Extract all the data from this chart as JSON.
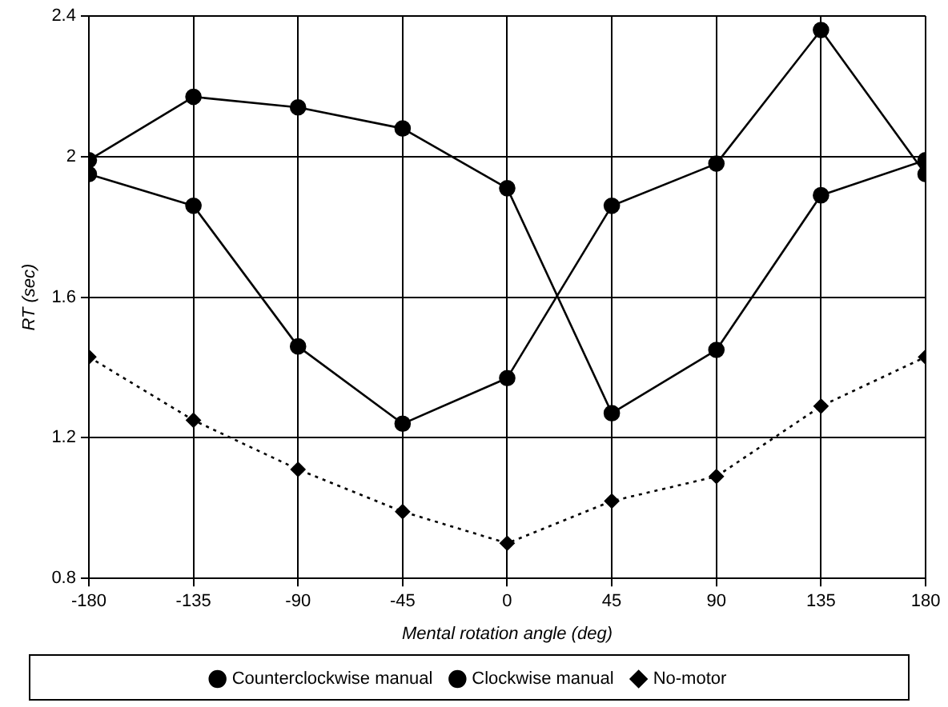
{
  "chart_data": {
    "type": "line",
    "xlabel": "Mental rotation angle (deg)",
    "ylabel": "RT (sec)",
    "x": [
      -180,
      -135,
      -90,
      -45,
      0,
      45,
      90,
      135,
      180
    ],
    "xlim": [
      -180,
      180
    ],
    "xticks": [
      -180,
      -135,
      -90,
      -45,
      0,
      45,
      90,
      135,
      180
    ],
    "ylim": [
      0.8,
      2.4
    ],
    "yticks": [
      0.8,
      1.2,
      1.6,
      2,
      2.4
    ],
    "grid": true,
    "legend": "bottom",
    "series": [
      {
        "name": "Counterclockwise manual",
        "color": "#000000",
        "marker": "circle",
        "line_style": "solid",
        "values": [
          1.95,
          1.86,
          1.46,
          1.24,
          1.37,
          1.86,
          1.98,
          2.36,
          1.95
        ]
      },
      {
        "name": "Clockwise manual",
        "color": "#000000",
        "marker": "circle",
        "line_style": "solid",
        "values": [
          1.99,
          2.17,
          2.14,
          2.08,
          1.91,
          1.27,
          1.45,
          1.89,
          1.99
        ]
      },
      {
        "name": "No-motor",
        "color": "#000000",
        "marker": "diamond",
        "line_style": "dotted",
        "values": [
          1.43,
          1.25,
          1.11,
          0.99,
          0.9,
          1.02,
          1.09,
          1.29,
          1.43
        ]
      }
    ]
  }
}
